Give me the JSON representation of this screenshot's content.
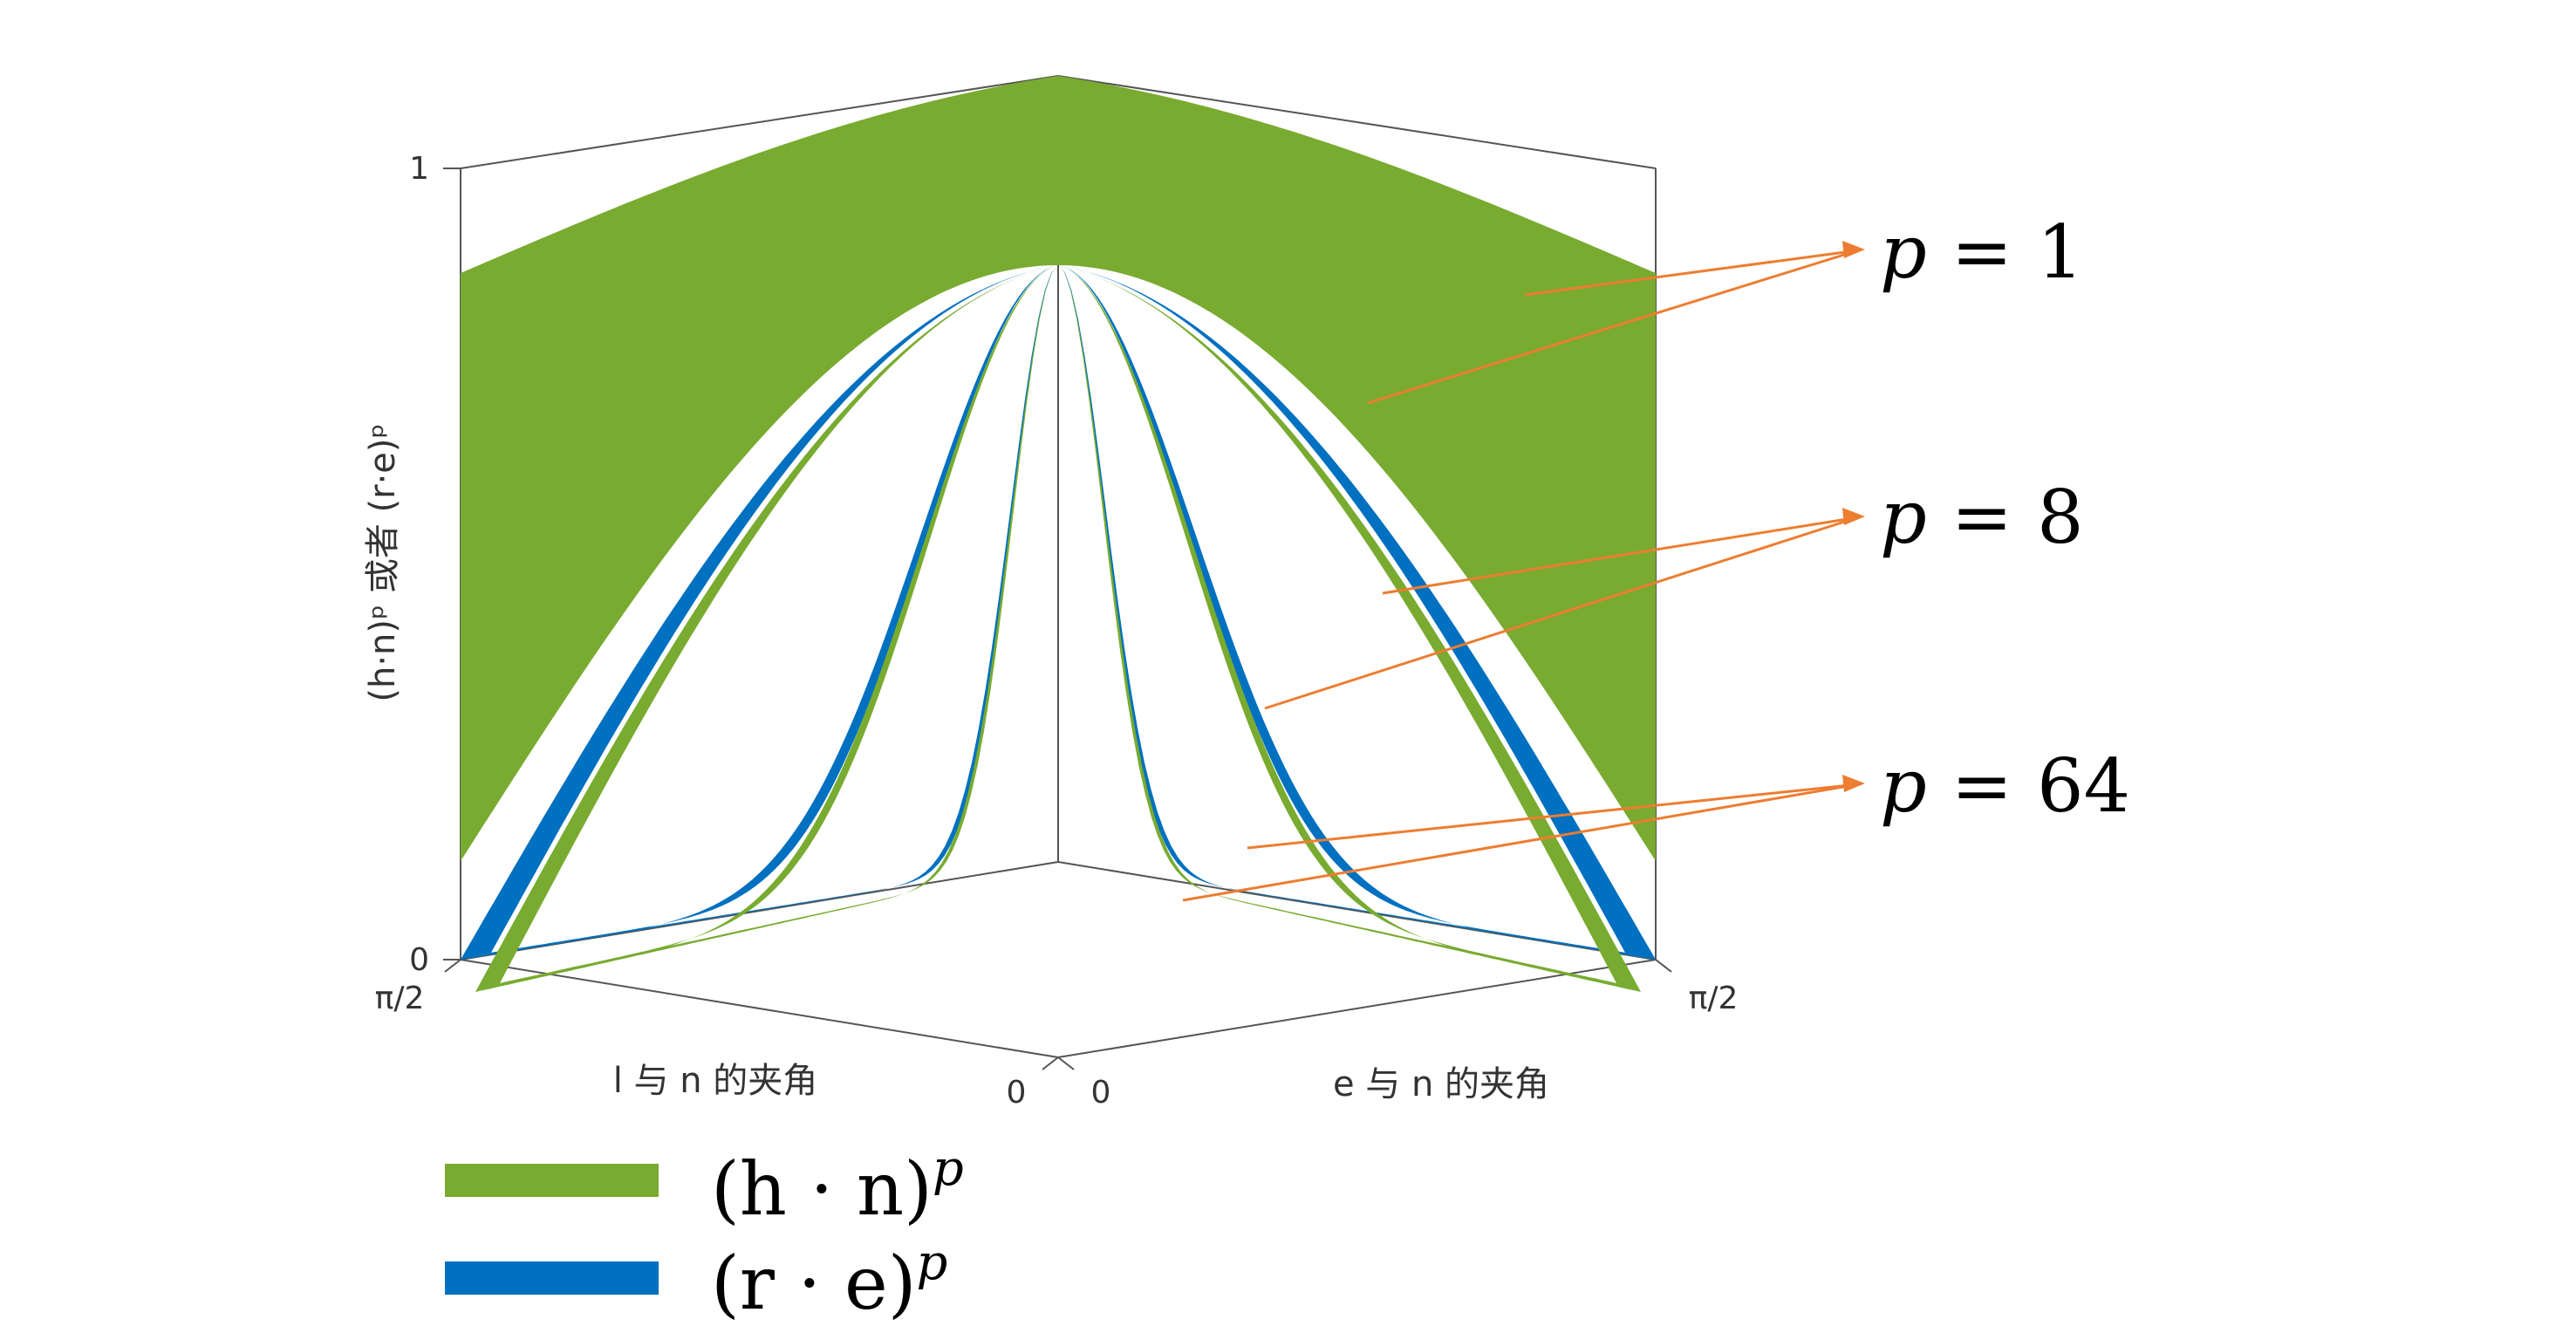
{
  "chart_data": {
    "type": "surface-3d",
    "title": "",
    "axes": {
      "x_left": {
        "label": "l 与 n 的夹角",
        "ticks": [
          "π/2",
          "0"
        ],
        "range": [
          1.5708,
          0
        ]
      },
      "x_right": {
        "label": "e 与 n 的夹角",
        "ticks": [
          "0",
          "π/2"
        ],
        "range": [
          0,
          1.5708
        ]
      },
      "z": {
        "label": "(h·n)ᵖ 或者 (r·e)ᵖ",
        "ticks": [
          "0",
          "1"
        ],
        "range": [
          0,
          1
        ]
      }
    },
    "exponents": [
      1,
      8,
      64
    ],
    "series": [
      {
        "name": "(h · n)ᵖ",
        "color": "#78ab30"
      },
      {
        "name": "(r · e)ᵖ",
        "color": "#0070c0"
      }
    ],
    "annotations": [
      {
        "p_label": "p",
        "eq": "=",
        "value": "1"
      },
      {
        "p_label": "p",
        "eq": "=",
        "value": "8"
      },
      {
        "p_label": "p",
        "eq": "=",
        "value": "64"
      }
    ],
    "grid": false,
    "legend": "bottom-left",
    "arrow_color": "#ed7d31"
  },
  "legend_items": [
    {
      "label": "(h · n)",
      "sup": "p",
      "color": "#78ab30"
    },
    {
      "label": "(r · e)",
      "sup": "p",
      "color": "#0070c0"
    }
  ]
}
